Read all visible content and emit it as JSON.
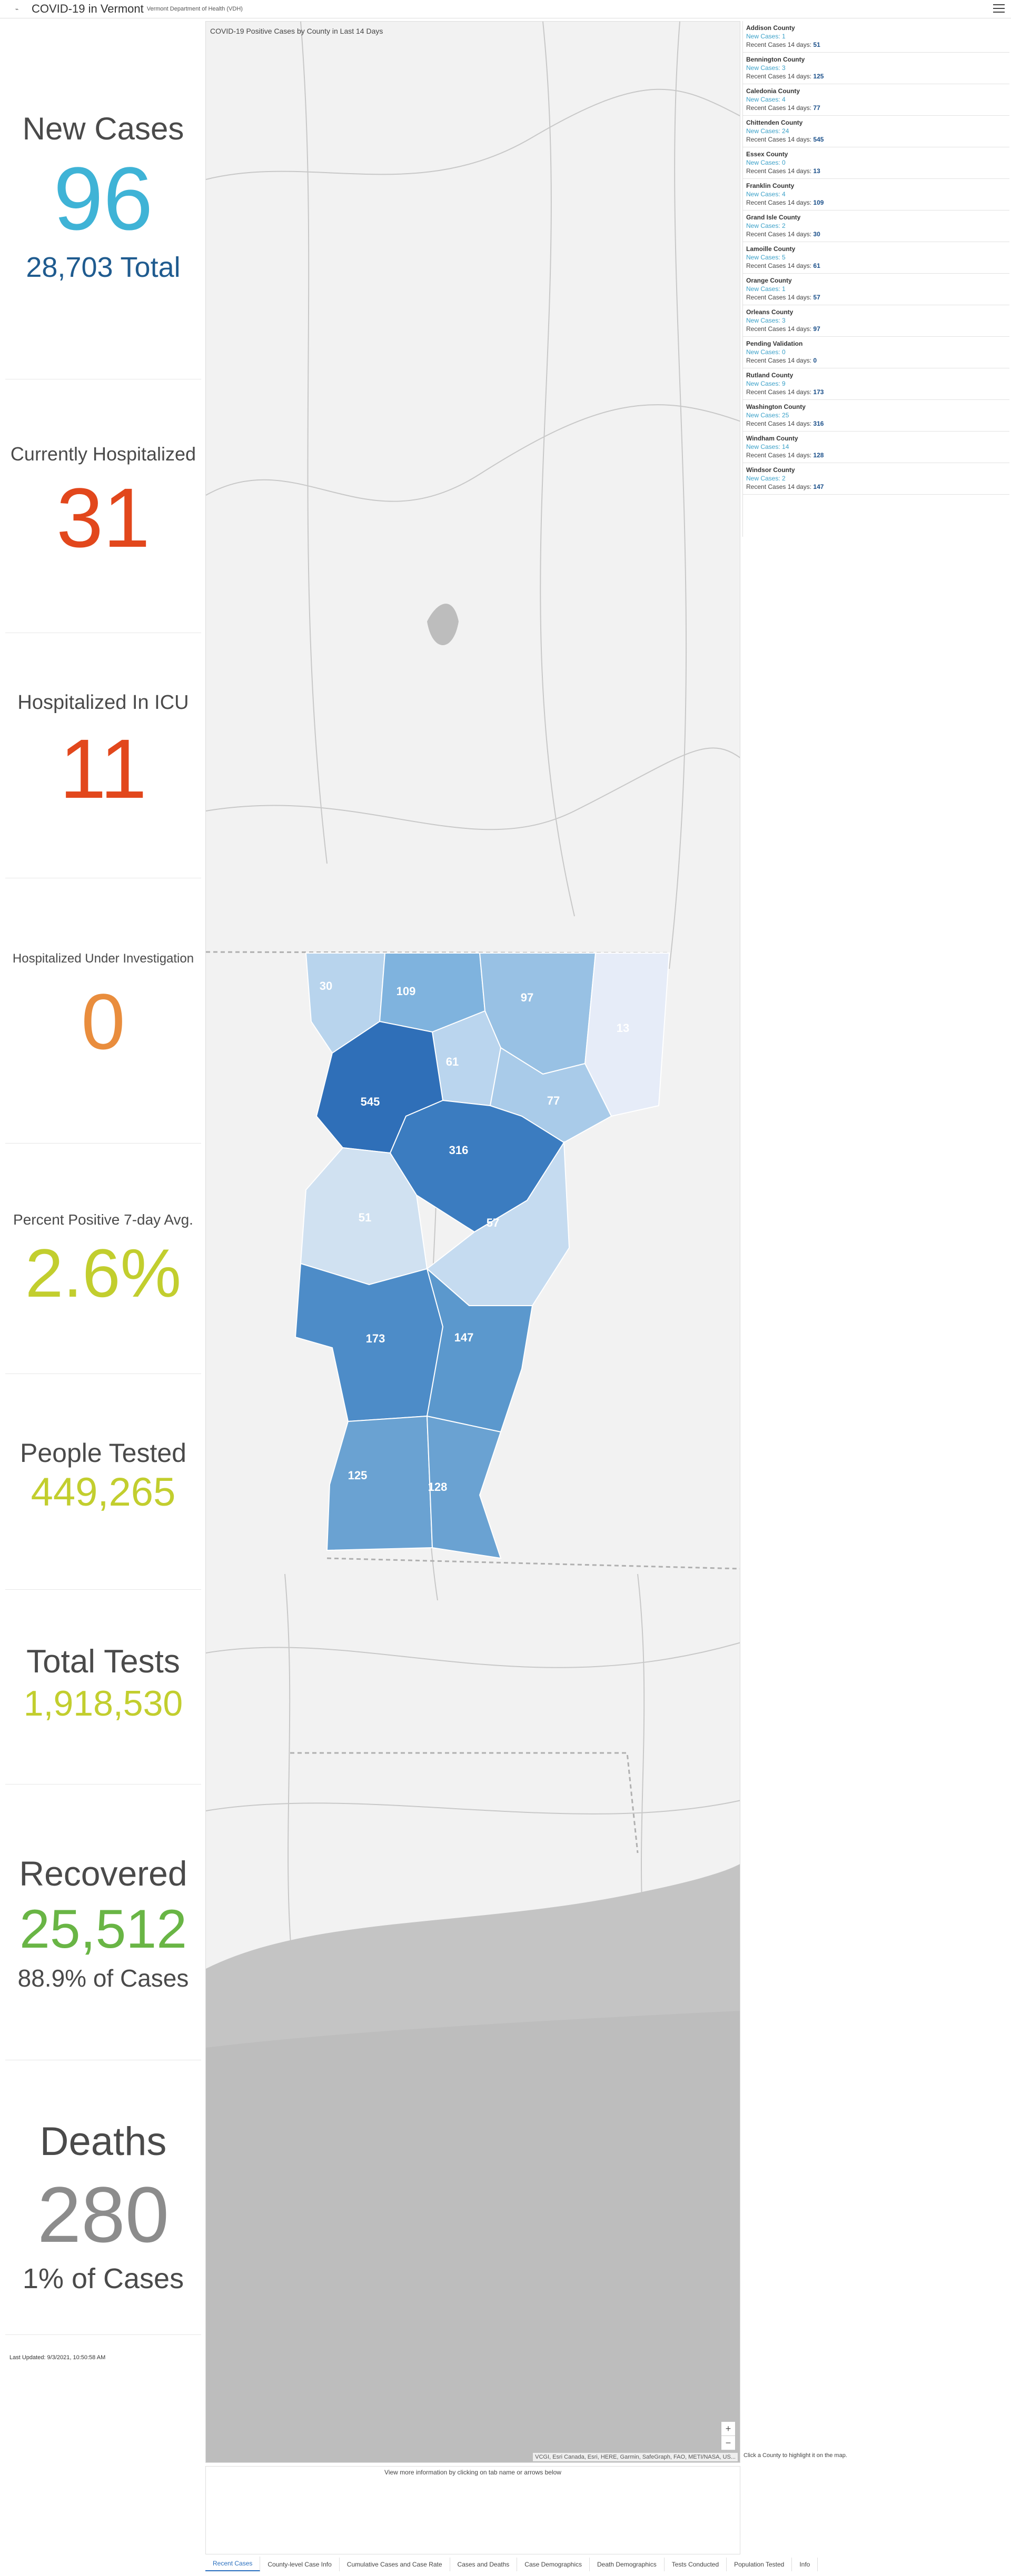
{
  "header": {
    "title": "COVID-19 in Vermont",
    "subtitle": "Vermont Department of Health (VDH)"
  },
  "stats": {
    "new_cases": {
      "label": "New Cases",
      "value": "96",
      "sub": "28,703 Total",
      "color": "#3fb3d6",
      "sub_color": "#1f5b8f"
    },
    "hospitalized": {
      "label": "Currently Hospitalized",
      "value": "31",
      "color": "#e2471c"
    },
    "icu": {
      "label": "Hospitalized In ICU",
      "value": "11",
      "color": "#e2471c"
    },
    "under_investigation": {
      "label": "Hospitalized Under Investigation",
      "value": "0",
      "color": "#e98d3d"
    },
    "percent_positive": {
      "label": "Percent Positive 7-day Avg.",
      "value": "2.6%",
      "color": "#c2ce2e"
    },
    "people_tested": {
      "label": "People Tested",
      "value": "449,265",
      "color": "#c2ce2e"
    },
    "total_tests": {
      "label": "Total Tests",
      "value": "1,918,530",
      "color": "#c2ce2e"
    },
    "recovered": {
      "label": "Recovered",
      "value": "25,512",
      "sub": "88.9% of Cases",
      "color": "#69b545"
    },
    "deaths": {
      "label": "Deaths",
      "value": "280",
      "sub": "1% of Cases",
      "color": "#8c8c8c"
    }
  },
  "last_updated": "Last Updated: 9/3/2021, 10:50:58 AM",
  "map": {
    "title": "COVID-19 Positive Cases by County in Last 14 Days",
    "attribution": "VCGI, Esri Canada, Esri, HERE, Garmin, SafeGraph, FAO, METI/NASA, US...",
    "hint": "Click a County to highlight it on the map.",
    "note": "View more information by clicking on tab name or arrows below",
    "zoom_in": "+",
    "zoom_out": "−",
    "labels": [
      "30",
      "109",
      "97",
      "13",
      "61",
      "545",
      "77",
      "316",
      "51",
      "57",
      "173",
      "147",
      "125",
      "128"
    ]
  },
  "counties": [
    {
      "name": "Addison County",
      "new": "New Cases: 1",
      "recent_label": "Recent Cases 14 days:",
      "recent": "51"
    },
    {
      "name": "Bennington County",
      "new": "New Cases: 3",
      "recent_label": "Recent Cases 14 days:",
      "recent": "125"
    },
    {
      "name": "Caledonia County",
      "new": "New Cases: 4",
      "recent_label": "Recent Cases 14 days:",
      "recent": "77"
    },
    {
      "name": "Chittenden County",
      "new": "New Cases: 24",
      "recent_label": "Recent Cases 14 days:",
      "recent": "545"
    },
    {
      "name": "Essex County",
      "new": "New Cases: 0",
      "recent_label": "Recent Cases 14 days:",
      "recent": "13"
    },
    {
      "name": "Franklin County",
      "new": "New Cases: 4",
      "recent_label": "Recent Cases 14 days:",
      "recent": "109"
    },
    {
      "name": "Grand Isle County",
      "new": "New Cases: 2",
      "recent_label": "Recent Cases 14 days:",
      "recent": "30"
    },
    {
      "name": "Lamoille County",
      "new": "New Cases: 5",
      "recent_label": "Recent Cases 14 days:",
      "recent": "61"
    },
    {
      "name": "Orange County",
      "new": "New Cases: 1",
      "recent_label": "Recent Cases 14 days:",
      "recent": "57"
    },
    {
      "name": "Orleans County",
      "new": "New Cases: 3",
      "recent_label": "Recent Cases 14 days:",
      "recent": "97"
    },
    {
      "name": "Pending Validation",
      "new": "New Cases: 0",
      "recent_label": "Recent Cases 14 days:",
      "recent": "0"
    },
    {
      "name": "Rutland County",
      "new": "New Cases: 9",
      "recent_label": "Recent Cases 14 days:",
      "recent": "173"
    },
    {
      "name": "Washington County",
      "new": "New Cases: 25",
      "recent_label": "Recent Cases 14 days:",
      "recent": "316"
    },
    {
      "name": "Windham County",
      "new": "New Cases: 14",
      "recent_label": "Recent Cases 14 days:",
      "recent": "128"
    },
    {
      "name": "Windsor County",
      "new": "New Cases: 2",
      "recent_label": "Recent Cases 14 days:",
      "recent": "147"
    }
  ],
  "tabs": [
    {
      "label": "Recent Cases"
    },
    {
      "label": "County-level Case Info"
    },
    {
      "label": "Cumulative Cases and Case Rate"
    },
    {
      "label": "Cases and Deaths"
    },
    {
      "label": "Case Demographics"
    },
    {
      "label": "Death Demographics"
    },
    {
      "label": "Tests Conducted"
    },
    {
      "label": "Population Tested"
    },
    {
      "label": "Info"
    }
  ]
}
